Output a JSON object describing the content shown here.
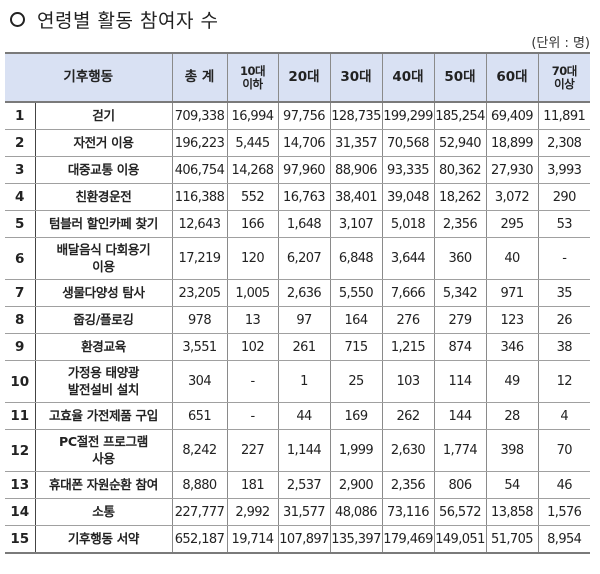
{
  "title": "연령별 활동 참여자 수",
  "unit_label": "(단위 : 명)",
  "table": {
    "headers": {
      "activity": "기후행동",
      "total": "총 계",
      "age10_l1": "10대",
      "age10_l2": "이하",
      "age20": "20대",
      "age30": "30대",
      "age40": "40대",
      "age50": "50대",
      "age60": "60대",
      "age70_l1": "70대",
      "age70_l2": "이상"
    },
    "rows": [
      {
        "no": "1",
        "activity": "걷기",
        "activity2": "",
        "total": "709,338",
        "a10": "16,994",
        "a20": "97,756",
        "a30": "128,735",
        "a40": "199,299",
        "a50": "185,254",
        "a60": "69,409",
        "a70": "11,891"
      },
      {
        "no": "2",
        "activity": "자전거 이용",
        "activity2": "",
        "total": "196,223",
        "a10": "5,445",
        "a20": "14,706",
        "a30": "31,357",
        "a40": "70,568",
        "a50": "52,940",
        "a60": "18,899",
        "a70": "2,308"
      },
      {
        "no": "3",
        "activity": "대중교통 이용",
        "activity2": "",
        "total": "406,754",
        "a10": "14,268",
        "a20": "97,960",
        "a30": "88,906",
        "a40": "93,335",
        "a50": "80,362",
        "a60": "27,930",
        "a70": "3,993"
      },
      {
        "no": "4",
        "activity": "친환경운전",
        "activity2": "",
        "total": "116,388",
        "a10": "552",
        "a20": "16,763",
        "a30": "38,401",
        "a40": "39,048",
        "a50": "18,262",
        "a60": "3,072",
        "a70": "290"
      },
      {
        "no": "5",
        "activity": "텀블러 할인카페 찾기",
        "activity2": "",
        "total": "12,643",
        "a10": "166",
        "a20": "1,648",
        "a30": "3,107",
        "a40": "5,018",
        "a50": "2,356",
        "a60": "295",
        "a70": "53"
      },
      {
        "no": "6",
        "activity": "배달음식 다회용기",
        "activity2": "이용",
        "total": "17,219",
        "a10": "120",
        "a20": "6,207",
        "a30": "6,848",
        "a40": "3,644",
        "a50": "360",
        "a60": "40",
        "a70": "-"
      },
      {
        "no": "7",
        "activity": "생물다양성 탐사",
        "activity2": "",
        "total": "23,205",
        "a10": "1,005",
        "a20": "2,636",
        "a30": "5,550",
        "a40": "7,666",
        "a50": "5,342",
        "a60": "971",
        "a70": "35"
      },
      {
        "no": "8",
        "activity": "줍깅/플로깅",
        "activity2": "",
        "total": "978",
        "a10": "13",
        "a20": "97",
        "a30": "164",
        "a40": "276",
        "a50": "279",
        "a60": "123",
        "a70": "26"
      },
      {
        "no": "9",
        "activity": "환경교육",
        "activity2": "",
        "total": "3,551",
        "a10": "102",
        "a20": "261",
        "a30": "715",
        "a40": "1,215",
        "a50": "874",
        "a60": "346",
        "a70": "38"
      },
      {
        "no": "10",
        "activity": "가정용 태양광",
        "activity2": "발전설비 설치",
        "total": "304",
        "a10": "-",
        "a20": "1",
        "a30": "25",
        "a40": "103",
        "a50": "114",
        "a60": "49",
        "a70": "12"
      },
      {
        "no": "11",
        "activity": "고효율 가전제품 구입",
        "activity2": "",
        "total": "651",
        "a10": "-",
        "a20": "44",
        "a30": "169",
        "a40": "262",
        "a50": "144",
        "a60": "28",
        "a70": "4"
      },
      {
        "no": "12",
        "activity": "PC절전 프로그램",
        "activity2": "사용",
        "total": "8,242",
        "a10": "227",
        "a20": "1,144",
        "a30": "1,999",
        "a40": "2,630",
        "a50": "1,774",
        "a60": "398",
        "a70": "70"
      },
      {
        "no": "13",
        "activity": "휴대폰 자원순환 참여",
        "activity2": "",
        "total": "8,880",
        "a10": "181",
        "a20": "2,537",
        "a30": "2,900",
        "a40": "2,356",
        "a50": "806",
        "a60": "54",
        "a70": "46"
      },
      {
        "no": "14",
        "activity": "소통",
        "activity2": "",
        "total": "227,777",
        "a10": "2,992",
        "a20": "31,577",
        "a30": "48,086",
        "a40": "73,116",
        "a50": "56,572",
        "a60": "13,858",
        "a70": "1,576"
      },
      {
        "no": "15",
        "activity": "기후행동 서약",
        "activity2": "",
        "total": "652,187",
        "a10": "19,714",
        "a20": "107,897",
        "a30": "135,397",
        "a40": "179,469",
        "a50": "149,051",
        "a60": "51,705",
        "a70": "8,954"
      }
    ]
  },
  "colors": {
    "header_bg": "#d9e1f3",
    "border": "#8a8a8a"
  }
}
